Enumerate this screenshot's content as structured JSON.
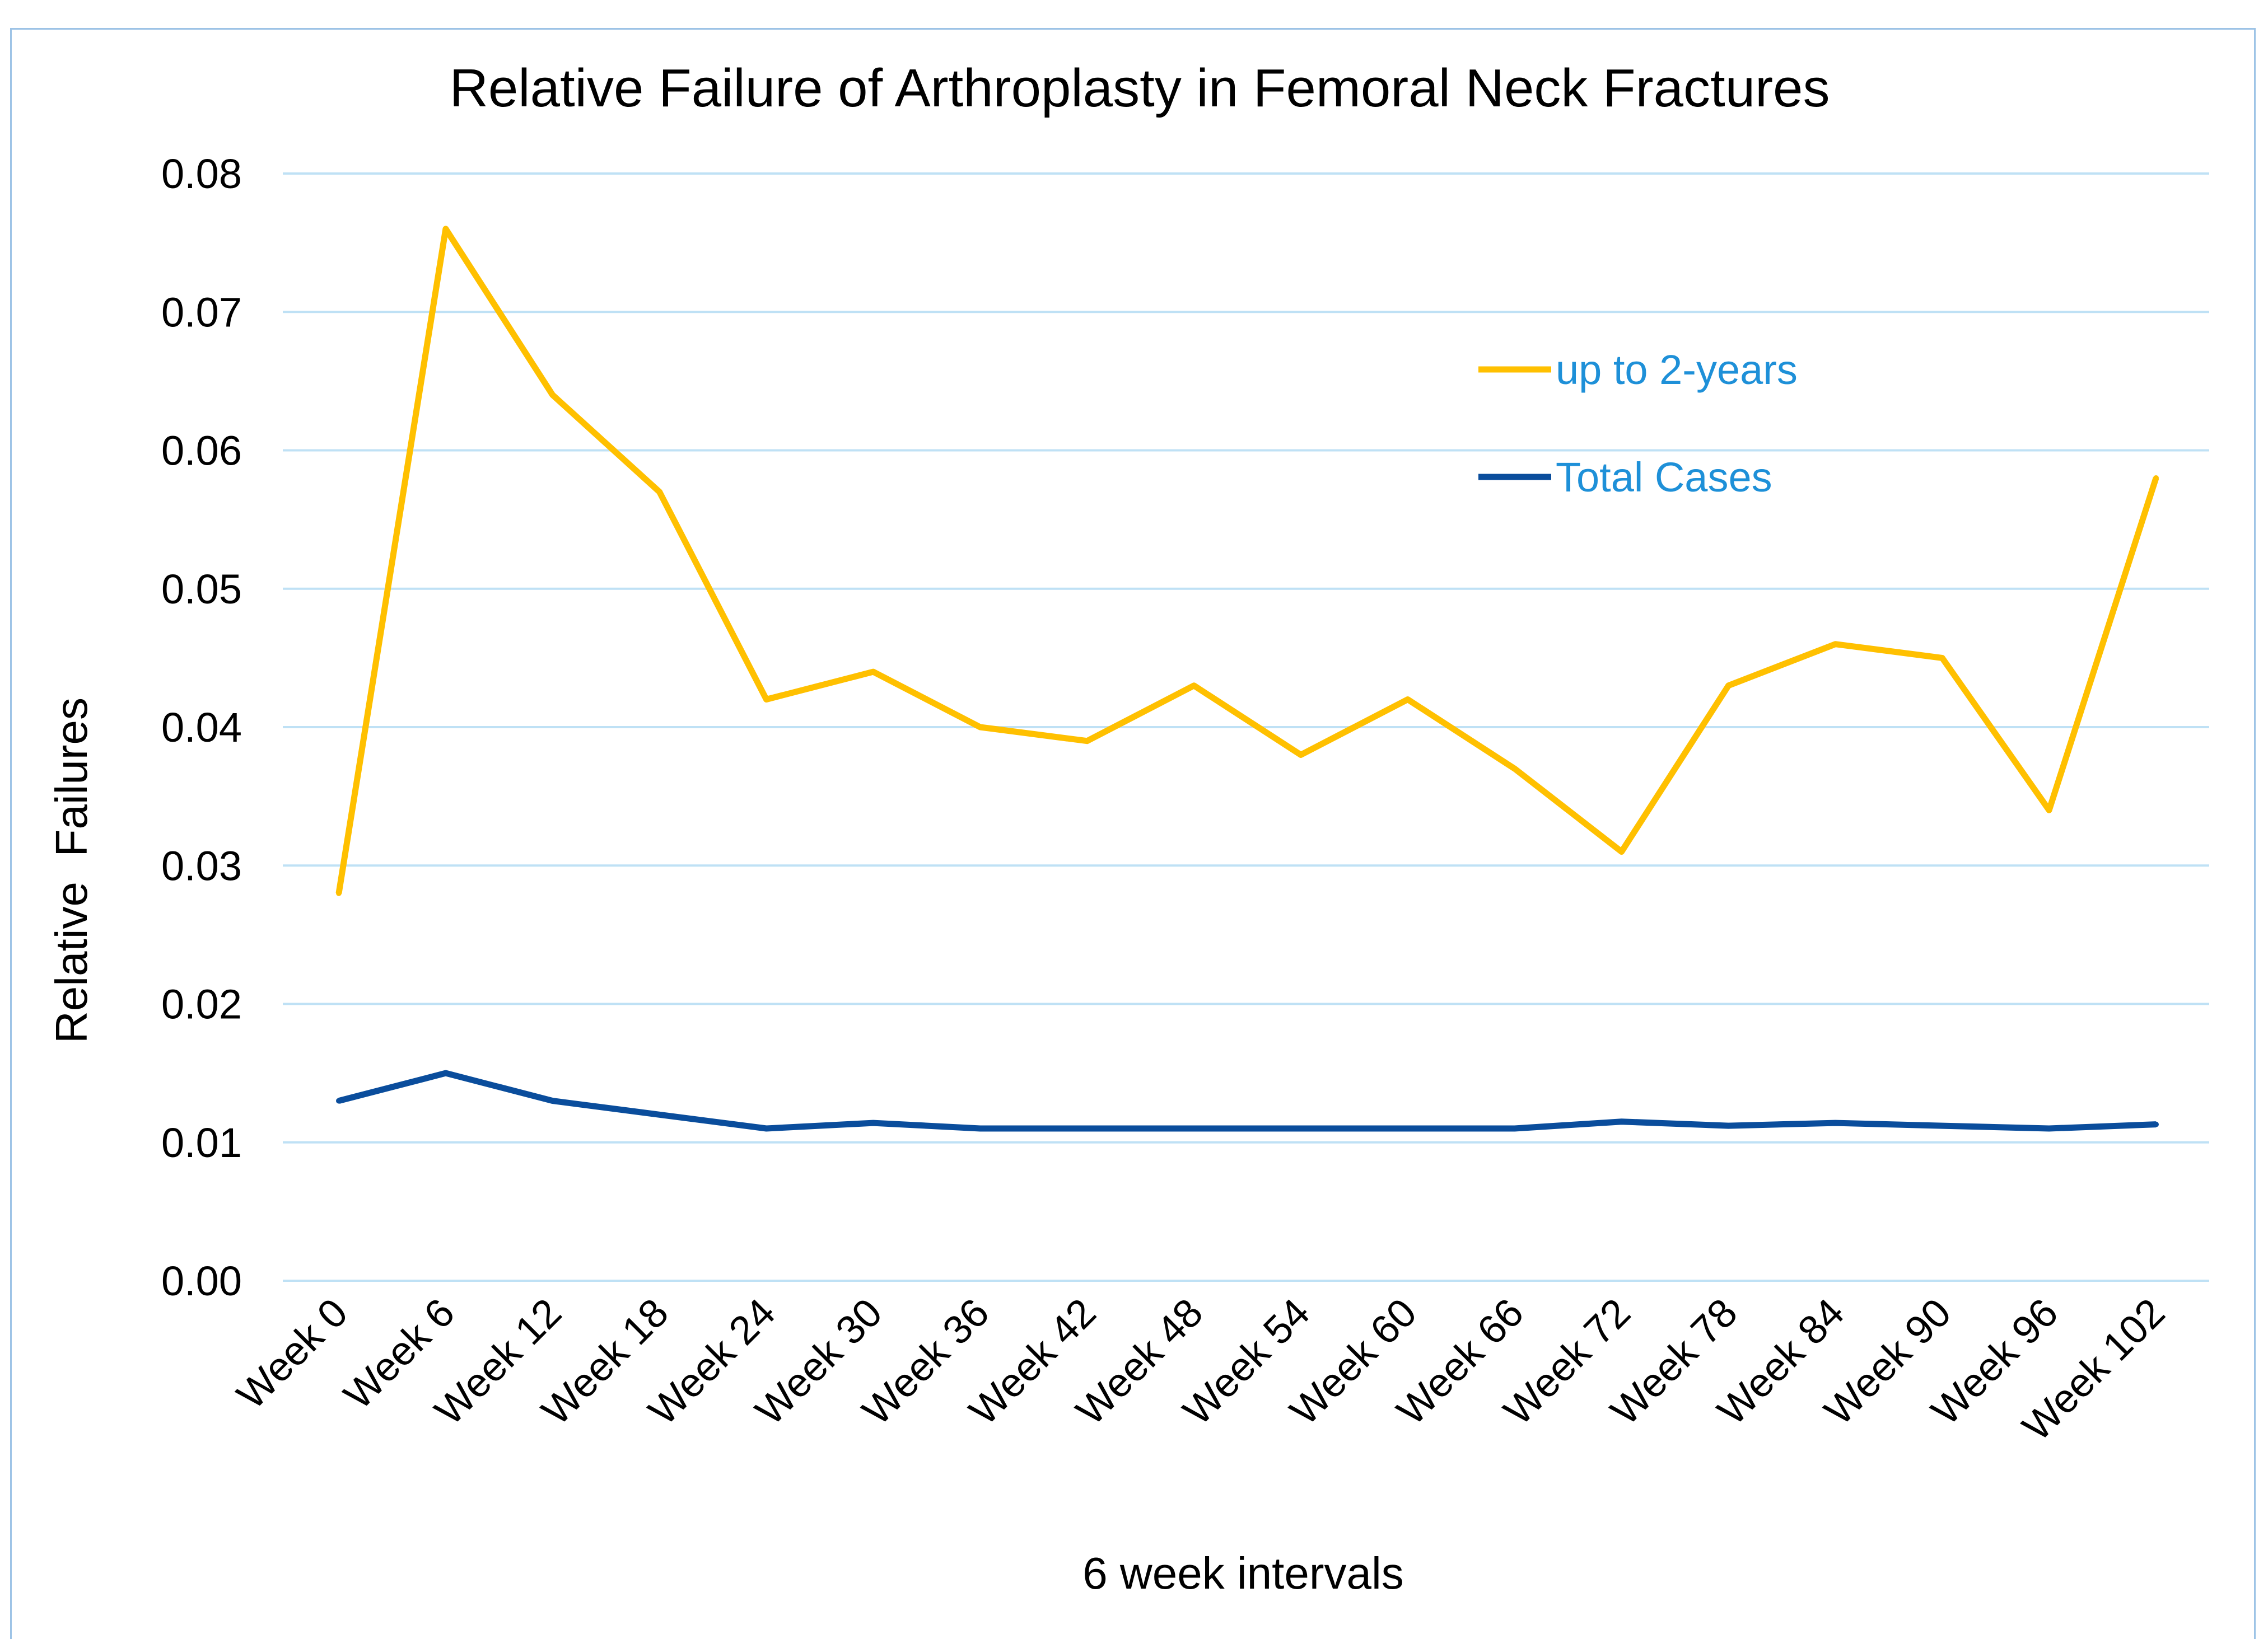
{
  "chart_data": {
    "type": "line",
    "title": "Relative Failure of Arthroplasty in Femoral Neck Fractures",
    "xlabel": "6 week intervals",
    "ylabel": "Relative  Failures",
    "ylim": [
      0,
      0.08
    ],
    "y_ticks": [
      "0.00",
      "0.01",
      "0.02",
      "0.03",
      "0.04",
      "0.05",
      "0.06",
      "0.07",
      "0.08"
    ],
    "y_tick_values": [
      0,
      0.01,
      0.02,
      0.03,
      0.04,
      0.05,
      0.06,
      0.07,
      0.08
    ],
    "grid": true,
    "legend_position": "top-right",
    "categories": [
      "Week 0",
      "Week 6",
      "Week 12",
      "Week 18",
      "Week 24",
      "Week 30",
      "Week 36",
      "Week 42",
      "Week 48",
      "Week 54",
      "Week 60",
      "Week 66",
      "Week 72",
      "Week 78",
      "Week 84",
      "Week 90",
      "Week 96",
      "Week 102"
    ],
    "series": [
      {
        "name": "up to 2-years",
        "color": "#ffc000",
        "values": [
          0.028,
          0.076,
          0.064,
          0.057,
          0.042,
          0.044,
          0.04,
          0.039,
          0.043,
          0.038,
          0.042,
          0.037,
          0.031,
          0.043,
          0.046,
          0.045,
          0.034,
          0.058
        ]
      },
      {
        "name": "Total Cases",
        "color": "#0a4d9c",
        "values": [
          0.013,
          0.015,
          0.013,
          0.012,
          0.011,
          0.0114,
          0.011,
          0.011,
          0.011,
          0.011,
          0.011,
          0.011,
          0.0115,
          0.0112,
          0.0114,
          0.0112,
          0.011,
          0.0113
        ]
      }
    ],
    "colors": {
      "gridline": "#bfe1f5",
      "legend_text": "#1e90d8",
      "border": "#9dc3e6"
    }
  }
}
